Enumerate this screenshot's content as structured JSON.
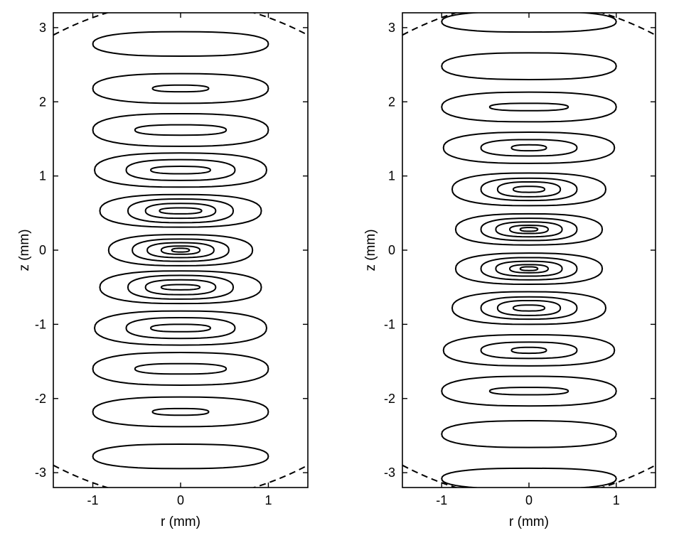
{
  "chart_data": [
    {
      "type": "contour",
      "xlabel": "r (mm)",
      "ylabel": "z (mm)",
      "xlim": [
        -1.45,
        1.45
      ],
      "ylim": [
        -3.2,
        3.2
      ],
      "xticks": [
        -1,
        0,
        1
      ],
      "xtick_labels": [
        "-1",
        "0",
        "1"
      ],
      "yticks": [
        -3,
        -2,
        -1,
        0,
        1,
        2,
        3
      ],
      "ytick_labels": [
        "-3",
        "-2",
        "-1",
        "0",
        "1",
        "2",
        "3"
      ],
      "grid": false,
      "boundary": {
        "style": "dashed",
        "z_vertex": 3.35,
        "z_at_edge": 2.9,
        "r_edge": 1.45
      },
      "fringes": [
        {
          "z": 2.78,
          "half_height": 0.165,
          "contours": [
            [
              1.0
            ]
          ]
        },
        {
          "z": 2.18,
          "half_height": 0.2,
          "contours": [
            [
              1.0
            ],
            [
              0.32,
              0.045
            ]
          ]
        },
        {
          "z": 1.62,
          "half_height": 0.22,
          "contours": [
            [
              1.0
            ],
            [
              0.52,
              0.07
            ]
          ]
        },
        {
          "z": 1.08,
          "half_height": 0.23,
          "contours": [
            [
              0.98
            ],
            [
              0.62,
              0.14
            ],
            [
              0.34,
              0.05
            ]
          ]
        },
        {
          "z": 0.53,
          "half_height": 0.22,
          "contours": [
            [
              0.92
            ],
            [
              0.6,
              0.16
            ],
            [
              0.4,
              0.1
            ],
            [
              0.24,
              0.04
            ]
          ]
        },
        {
          "z": 0.0,
          "half_height": 0.21,
          "contours": [
            [
              0.82
            ],
            [
              0.55,
              0.15
            ],
            [
              0.38,
              0.1
            ],
            [
              0.22,
              0.055
            ],
            [
              0.1,
              0.025
            ]
          ]
        },
        {
          "z": -0.5,
          "half_height": 0.22,
          "contours": [
            [
              0.92
            ],
            [
              0.6,
              0.16
            ],
            [
              0.4,
              0.1
            ],
            [
              0.22,
              0.035
            ]
          ]
        },
        {
          "z": -1.05,
          "half_height": 0.23,
          "contours": [
            [
              0.98
            ],
            [
              0.62,
              0.14
            ],
            [
              0.34,
              0.05
            ]
          ]
        },
        {
          "z": -1.6,
          "half_height": 0.22,
          "contours": [
            [
              1.0
            ],
            [
              0.52,
              0.07
            ]
          ]
        },
        {
          "z": -2.18,
          "half_height": 0.2,
          "contours": [
            [
              1.0
            ],
            [
              0.32,
              0.045
            ]
          ]
        },
        {
          "z": -2.78,
          "half_height": 0.165,
          "contours": [
            [
              1.0
            ]
          ]
        }
      ]
    },
    {
      "type": "contour",
      "xlabel": "r (mm)",
      "ylabel": "z (mm)",
      "xlim": [
        -1.45,
        1.45
      ],
      "ylim": [
        -3.2,
        3.2
      ],
      "xticks": [
        -1,
        0,
        1
      ],
      "xtick_labels": [
        "-1",
        "0",
        "1"
      ],
      "yticks": [
        -3,
        -2,
        -1,
        0,
        1,
        2,
        3
      ],
      "ytick_labels": [
        "-3",
        "-2",
        "-1",
        "0",
        "1",
        "2",
        "3"
      ],
      "grid": false,
      "boundary": {
        "style": "dashed",
        "z_vertex": 3.35,
        "z_at_edge": 2.9,
        "r_edge": 1.45
      },
      "fringes": [
        {
          "z": 3.08,
          "half_height": 0.14,
          "contours": [
            [
              1.0
            ]
          ]
        },
        {
          "z": 2.48,
          "half_height": 0.18,
          "contours": [
            [
              1.0
            ]
          ]
        },
        {
          "z": 1.93,
          "half_height": 0.2,
          "contours": [
            [
              1.0
            ],
            [
              0.45,
              0.05
            ]
          ]
        },
        {
          "z": 1.38,
          "half_height": 0.21,
          "contours": [
            [
              0.98
            ],
            [
              0.55,
              0.11
            ],
            [
              0.2,
              0.04
            ]
          ]
        },
        {
          "z": 0.82,
          "half_height": 0.22,
          "contours": [
            [
              0.88
            ],
            [
              0.55,
              0.15
            ],
            [
              0.36,
              0.1
            ],
            [
              0.18,
              0.04
            ]
          ]
        },
        {
          "z": 0.28,
          "half_height": 0.21,
          "contours": [
            [
              0.84
            ],
            [
              0.55,
              0.15
            ],
            [
              0.38,
              0.1
            ],
            [
              0.22,
              0.055
            ],
            [
              0.1,
              0.025
            ]
          ]
        },
        {
          "z": -0.25,
          "half_height": 0.21,
          "contours": [
            [
              0.84
            ],
            [
              0.55,
              0.15
            ],
            [
              0.38,
              0.1
            ],
            [
              0.22,
              0.055
            ],
            [
              0.1,
              0.025
            ]
          ]
        },
        {
          "z": -0.78,
          "half_height": 0.22,
          "contours": [
            [
              0.88
            ],
            [
              0.55,
              0.15
            ],
            [
              0.36,
              0.1
            ],
            [
              0.18,
              0.04
            ]
          ]
        },
        {
          "z": -1.35,
          "half_height": 0.21,
          "contours": [
            [
              0.98
            ],
            [
              0.55,
              0.11
            ],
            [
              0.2,
              0.04
            ]
          ]
        },
        {
          "z": -1.9,
          "half_height": 0.2,
          "contours": [
            [
              1.0
            ],
            [
              0.45,
              0.05
            ]
          ]
        },
        {
          "z": -2.48,
          "half_height": 0.18,
          "contours": [
            [
              1.0
            ]
          ]
        },
        {
          "z": -3.08,
          "half_height": 0.14,
          "contours": [
            [
              1.0
            ]
          ]
        }
      ]
    }
  ]
}
